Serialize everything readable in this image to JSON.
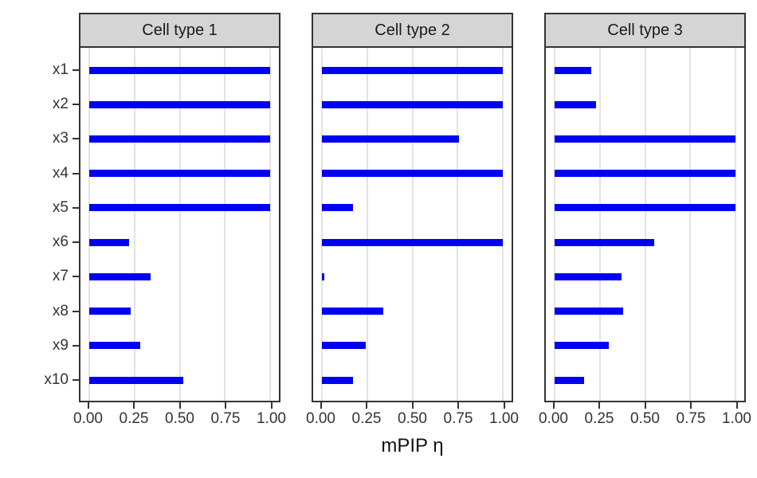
{
  "chart_data": {
    "type": "bar",
    "orientation": "horizontal",
    "xlabel": "mPIP η",
    "categories": [
      "x1",
      "x2",
      "x3",
      "x4",
      "x5",
      "x6",
      "x7",
      "x8",
      "x9",
      "x10"
    ],
    "x_tick_labels": [
      "0.00",
      "0.25",
      "0.50",
      "0.75",
      "1.00"
    ],
    "x_tick_values": [
      0,
      0.25,
      0.5,
      0.75,
      1.0
    ],
    "xlim": [
      0,
      1
    ],
    "x_expand": 0.05,
    "grid": "vertical-major-only",
    "legend": "none",
    "facets": [
      {
        "label": "Cell type 1",
        "values": [
          1.0,
          1.0,
          1.0,
          1.0,
          1.0,
          0.22,
          0.34,
          0.23,
          0.28,
          0.52
        ]
      },
      {
        "label": "Cell type 2",
        "values": [
          1.0,
          1.0,
          0.76,
          1.0,
          0.17,
          1.0,
          0.01,
          0.34,
          0.24,
          0.17
        ]
      },
      {
        "label": "Cell type 3",
        "values": [
          0.2,
          0.23,
          1.0,
          1.0,
          1.0,
          0.55,
          0.37,
          0.38,
          0.3,
          0.16
        ]
      }
    ],
    "colors": {
      "bar": "#0000f5",
      "gridline": "#e3e3e3",
      "strip_fill": "#d5d5d5",
      "panel_border": "#333333",
      "axis_text": "#333333",
      "background": "#ffffff"
    }
  }
}
